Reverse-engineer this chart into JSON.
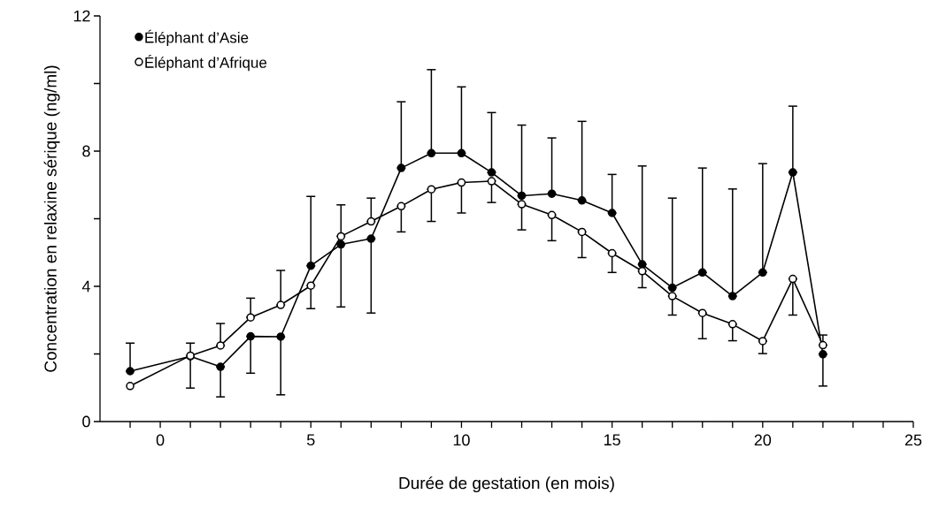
{
  "chart_data": {
    "type": "line",
    "xlabel": "Durée de gestation (en mois)",
    "ylabel": "Concentration en relaxine sérique (ng/ml)",
    "x": [
      -1,
      1,
      2,
      3,
      4,
      5,
      6,
      7,
      8,
      9,
      10,
      11,
      12,
      13,
      14,
      15,
      16,
      17,
      18,
      19,
      20,
      21,
      22
    ],
    "series": [
      {
        "name": "Éléphant d’Asie",
        "color": "#000000",
        "values": [
          1.49,
          1.93,
          1.62,
          2.52,
          2.51,
          4.61,
          5.24,
          5.41,
          7.5,
          7.94,
          7.94,
          7.37,
          6.68,
          6.74,
          6.54,
          6.17,
          4.65,
          3.96,
          4.41,
          3.71,
          4.41,
          7.37,
          1.99
        ],
        "errors": [
          [
            1.49,
            2.32
          ],
          [
            0.99,
            2.32
          ],
          [
            0.73,
            1.62
          ],
          [
            1.43,
            2.52
          ],
          [
            0.79,
            2.51
          ],
          [
            4.61,
            6.66
          ],
          [
            3.39,
            5.24
          ],
          [
            3.21,
            5.41
          ],
          [
            7.5,
            9.46
          ],
          [
            7.94,
            10.41
          ],
          [
            7.94,
            9.9
          ],
          [
            7.37,
            9.14
          ],
          [
            6.68,
            8.77
          ],
          [
            6.74,
            8.39
          ],
          [
            6.54,
            8.88
          ],
          [
            6.17,
            7.31
          ],
          [
            4.65,
            7.56
          ],
          [
            3.96,
            6.61
          ],
          [
            4.41,
            7.5
          ],
          [
            3.71,
            6.88
          ],
          [
            4.41,
            7.63
          ],
          [
            7.37,
            9.33
          ],
          [
            1.05,
            1.99
          ]
        ]
      },
      {
        "name": "Éléphant d’Afrique",
        "color": "#000000",
        "values": [
          1.05,
          1.95,
          2.25,
          3.08,
          3.45,
          4.02,
          5.48,
          5.92,
          6.37,
          6.87,
          7.07,
          7.11,
          6.43,
          6.11,
          5.61,
          4.98,
          4.45,
          3.71,
          3.21,
          2.88,
          2.38,
          4.22,
          2.26
        ],
        "errors": [
          null,
          null,
          [
            2.25,
            2.9
          ],
          [
            3.08,
            3.65
          ],
          [
            3.45,
            4.47
          ],
          [
            3.34,
            4.02
          ],
          [
            5.48,
            6.41
          ],
          [
            5.92,
            6.61
          ],
          [
            5.61,
            6.37
          ],
          [
            5.92,
            6.87
          ],
          [
            6.17,
            7.07
          ],
          [
            6.48,
            7.11
          ],
          [
            5.67,
            6.43
          ],
          [
            5.35,
            6.11
          ],
          [
            4.85,
            5.61
          ],
          [
            4.41,
            4.98
          ],
          [
            3.96,
            4.45
          ],
          [
            3.15,
            3.71
          ],
          [
            2.45,
            3.21
          ],
          [
            2.39,
            2.88
          ],
          [
            2.01,
            2.38
          ],
          [
            3.15,
            4.22
          ],
          [
            2.26,
            2.56
          ]
        ]
      }
    ],
    "xlim": [
      -2,
      25
    ],
    "ylim": [
      0,
      12
    ],
    "xticks": [
      {
        "value": -1,
        "label": null
      },
      0,
      {
        "value": 1,
        "label": null
      },
      {
        "value": 2,
        "label": null
      },
      {
        "value": 3,
        "label": null
      },
      {
        "value": 4,
        "label": null
      },
      5,
      {
        "value": 6,
        "label": null
      },
      {
        "value": 7,
        "label": null
      },
      {
        "value": 8,
        "label": null
      },
      {
        "value": 9,
        "label": null
      },
      10,
      {
        "value": 11,
        "label": null
      },
      {
        "value": 12,
        "label": null
      },
      {
        "value": 13,
        "label": null
      },
      {
        "value": 14,
        "label": null
      },
      15,
      {
        "value": 16,
        "label": null
      },
      {
        "value": 17,
        "label": null
      },
      {
        "value": 18,
        "label": null
      },
      {
        "value": 19,
        "label": null
      },
      20,
      {
        "value": 21,
        "label": null
      },
      {
        "value": 22,
        "label": null
      },
      {
        "value": 23,
        "label": null
      },
      {
        "value": 24,
        "label": null
      },
      25
    ],
    "yticks": [
      0,
      {
        "value": 2,
        "label": null
      },
      4,
      {
        "value": 6,
        "label": null
      },
      8,
      {
        "value": 10,
        "label": null
      },
      12
    ],
    "marker": "circle",
    "line_style": "solid",
    "legend": "top left",
    "grid": false
  }
}
